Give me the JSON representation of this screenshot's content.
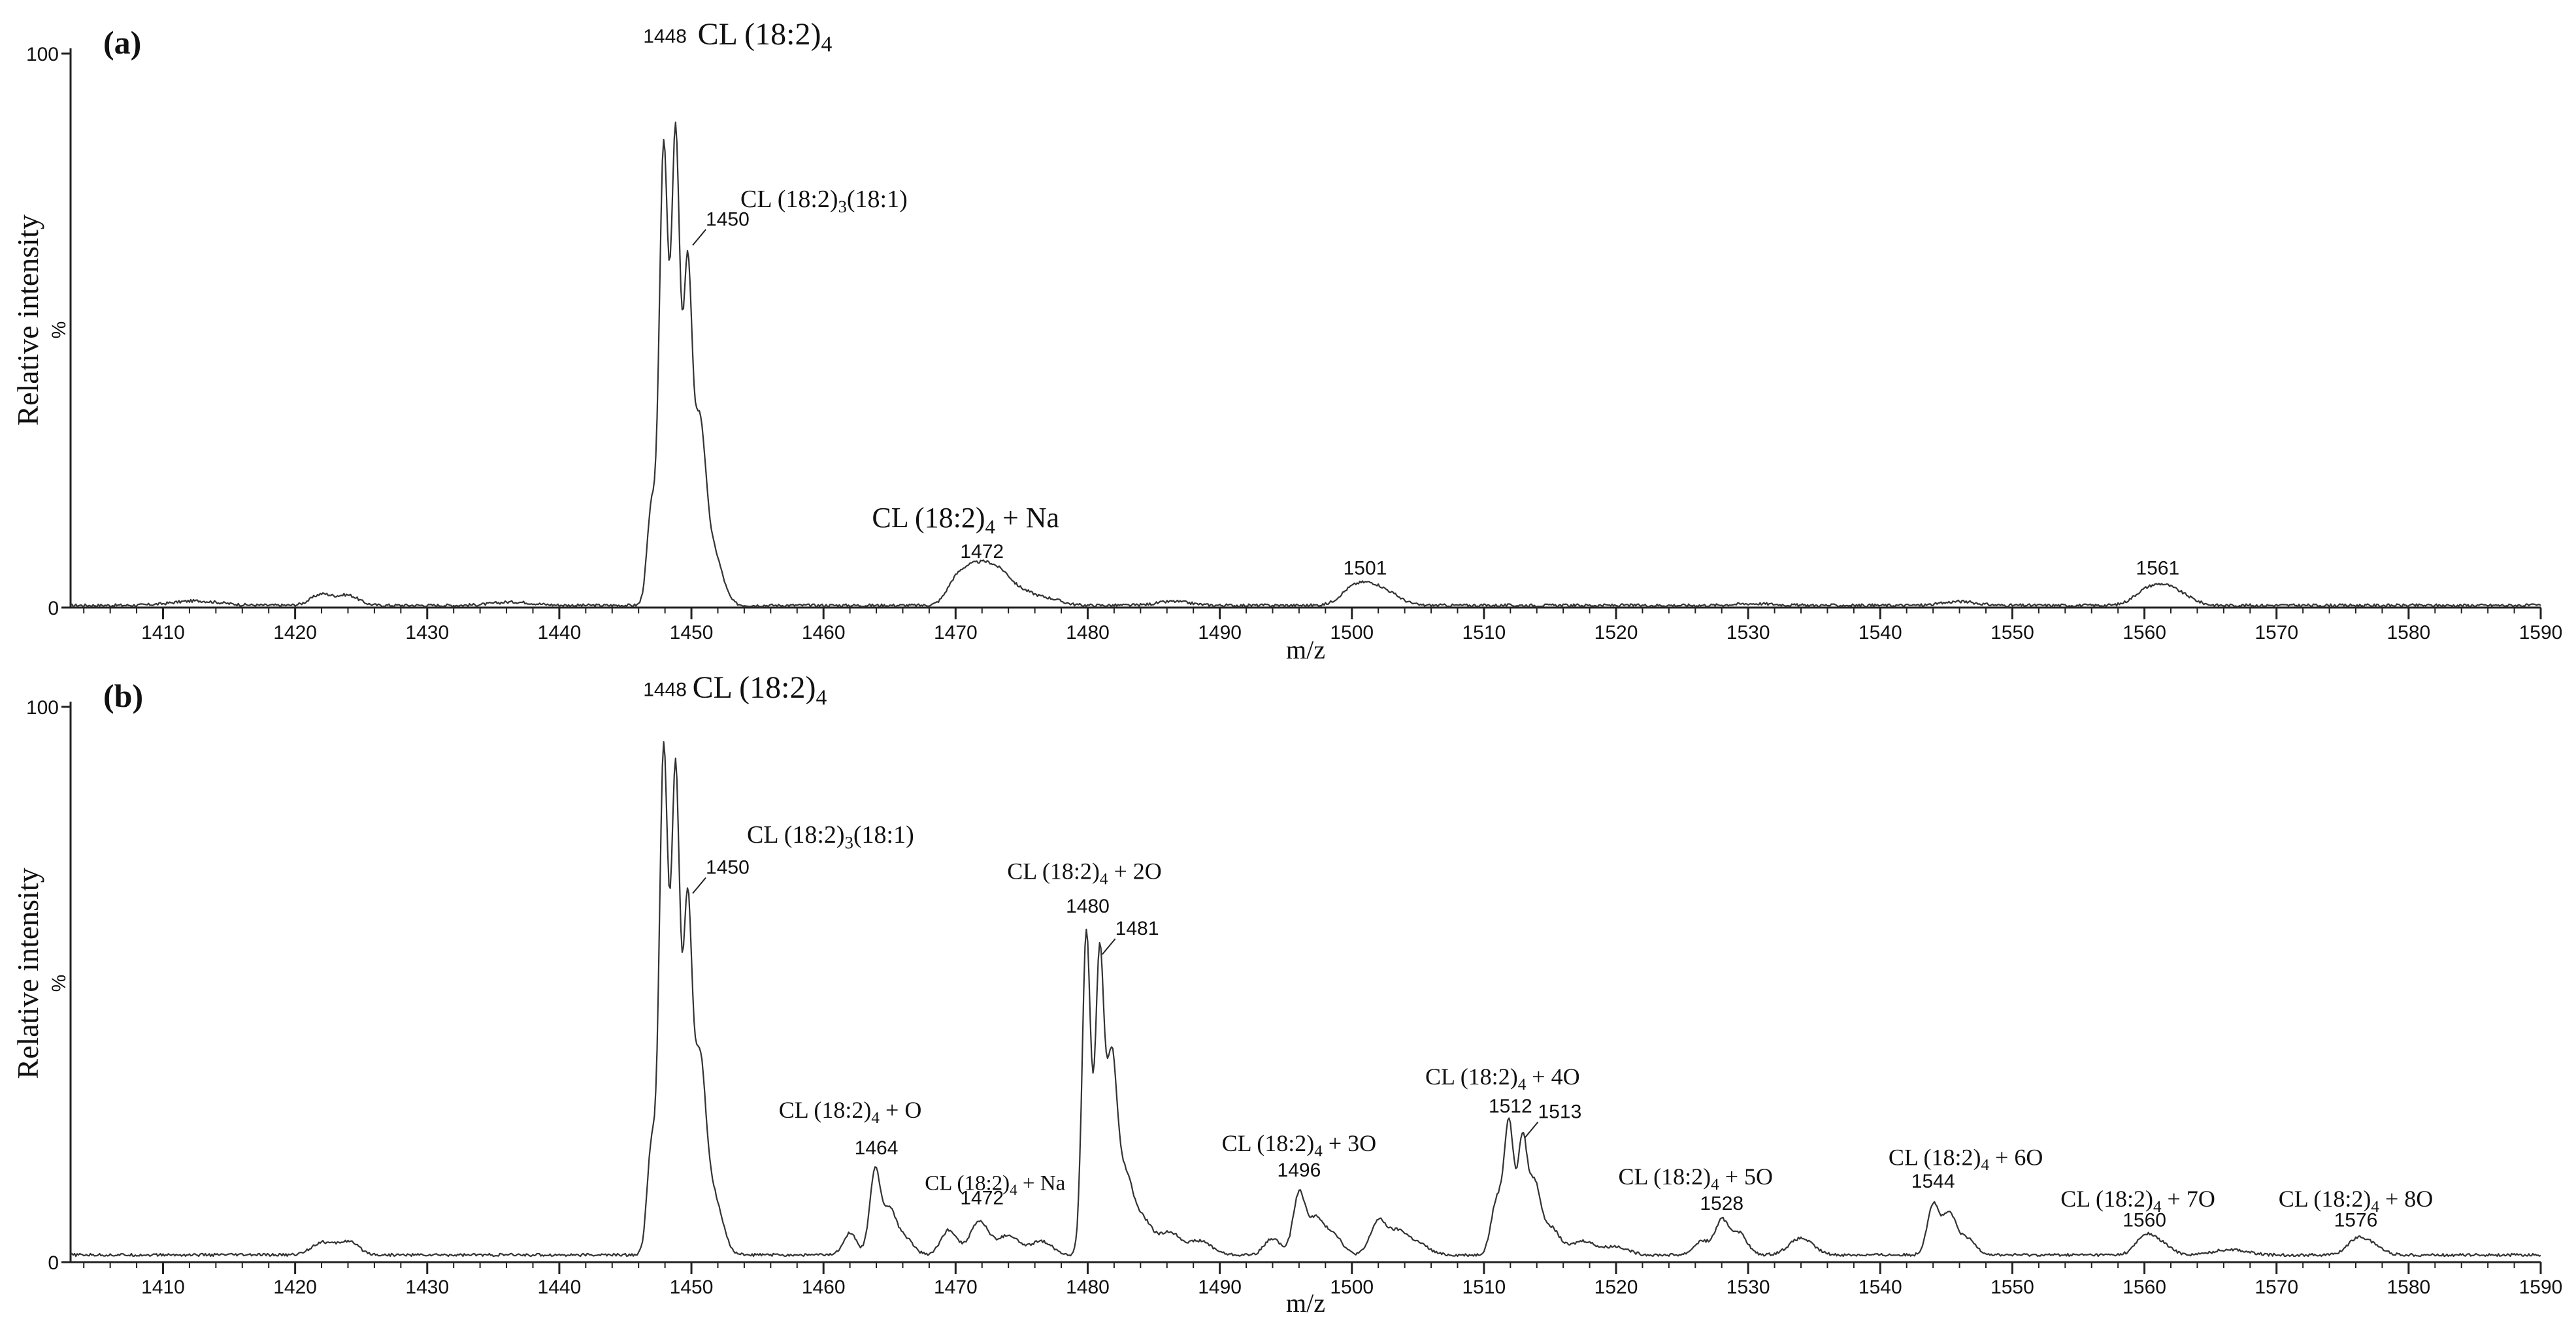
{
  "chart_data": [
    {
      "id": "a",
      "type": "line",
      "panel_label": "(a)",
      "xlabel": "m/z",
      "ylabel": "Relative intensity",
      "ylabel_unit": "%",
      "xlim": [
        1403,
        1590
      ],
      "ylim": [
        0,
        100
      ],
      "xticks": [
        1410,
        1420,
        1430,
        1440,
        1450,
        1460,
        1470,
        1480,
        1490,
        1500,
        1510,
        1520,
        1530,
        1540,
        1550,
        1560,
        1570,
        1580,
        1590
      ],
      "yticks": [
        0,
        100
      ],
      "baseline": 0.4,
      "peaks": [
        {
          "mz": 1412.5,
          "intensity": 0.8,
          "width": 1.8
        },
        {
          "mz": 1422.0,
          "intensity": 2.0,
          "width": 0.8
        },
        {
          "mz": 1424.0,
          "intensity": 1.8,
          "width": 0.8
        },
        {
          "mz": 1436.5,
          "intensity": 0.6,
          "width": 1.5
        },
        {
          "mz": 1447.0,
          "intensity": 18,
          "width": 0.35
        },
        {
          "mz": 1447.9,
          "intensity": 82,
          "width": 0.32
        },
        {
          "mz": 1448.8,
          "intensity": 84,
          "width": 0.32
        },
        {
          "mz": 1449.7,
          "intensity": 58,
          "width": 0.33
        },
        {
          "mz": 1450.6,
          "intensity": 30,
          "width": 0.45
        },
        {
          "mz": 1451.6,
          "intensity": 10,
          "width": 0.7
        },
        {
          "mz": 1470.0,
          "intensity": 4.2,
          "width": 0.7
        },
        {
          "mz": 1471.2,
          "intensity": 5.3,
          "width": 0.7
        },
        {
          "mz": 1472.4,
          "intensity": 5.6,
          "width": 0.7
        },
        {
          "mz": 1473.6,
          "intensity": 4.3,
          "width": 0.7
        },
        {
          "mz": 1475.0,
          "intensity": 2.4,
          "width": 0.9
        },
        {
          "mz": 1477.0,
          "intensity": 1.2,
          "width": 1.0
        },
        {
          "mz": 1486.5,
          "intensity": 0.7,
          "width": 1.2
        },
        {
          "mz": 1500.0,
          "intensity": 2.8,
          "width": 0.9
        },
        {
          "mz": 1501.5,
          "intensity": 3.0,
          "width": 0.9
        },
        {
          "mz": 1503.0,
          "intensity": 1.6,
          "width": 0.9
        },
        {
          "mz": 1530.5,
          "intensity": 0.3,
          "width": 1.5
        },
        {
          "mz": 1546.0,
          "intensity": 0.7,
          "width": 1.2
        },
        {
          "mz": 1560.0,
          "intensity": 2.3,
          "width": 0.9
        },
        {
          "mz": 1561.5,
          "intensity": 2.9,
          "width": 0.9
        },
        {
          "mz": 1563.0,
          "intensity": 1.4,
          "width": 0.9
        }
      ],
      "peak_labels": [
        {
          "text": "1448",
          "mz": 1448
        },
        {
          "text": "1450",
          "mz": 1450,
          "leader": true
        },
        {
          "text": "1472",
          "mz": 1472
        },
        {
          "text": "1501",
          "mz": 1501
        },
        {
          "text": "1561",
          "mz": 1561
        }
      ],
      "annotations": [
        {
          "pre": "CL (18:2)",
          "sub": "4",
          "post": "",
          "anchor": "1448 main"
        },
        {
          "pre": "CL (18:2)",
          "sub": "3",
          "post": "(18:1)",
          "anchor": "1450"
        },
        {
          "pre": "CL (18:2)",
          "sub": "4",
          "post": " + Na",
          "anchor": "1472 above"
        }
      ]
    },
    {
      "id": "b",
      "type": "line",
      "panel_label": "(b)",
      "xlabel": "m/z",
      "ylabel": "Relative intensity",
      "ylabel_unit": "%",
      "xlim": [
        1403,
        1590
      ],
      "ylim": [
        0,
        100
      ],
      "xticks": [
        1410,
        1420,
        1430,
        1440,
        1450,
        1460,
        1470,
        1480,
        1490,
        1500,
        1510,
        1520,
        1530,
        1540,
        1550,
        1560,
        1570,
        1580,
        1590
      ],
      "yticks": [
        0,
        100
      ],
      "baseline": 1.3,
      "peaks": [
        {
          "mz": 1422.0,
          "intensity": 2.2,
          "width": 0.8
        },
        {
          "mz": 1424.0,
          "intensity": 2.4,
          "width": 0.8
        },
        {
          "mz": 1447.0,
          "intensity": 20,
          "width": 0.35
        },
        {
          "mz": 1447.9,
          "intensity": 90,
          "width": 0.32
        },
        {
          "mz": 1448.8,
          "intensity": 86,
          "width": 0.32
        },
        {
          "mz": 1449.7,
          "intensity": 60,
          "width": 0.33
        },
        {
          "mz": 1450.6,
          "intensity": 32,
          "width": 0.45
        },
        {
          "mz": 1451.6,
          "intensity": 11,
          "width": 0.7
        },
        {
          "mz": 1462.0,
          "intensity": 4,
          "width": 0.5
        },
        {
          "mz": 1463.9,
          "intensity": 15,
          "width": 0.4
        },
        {
          "mz": 1465.0,
          "intensity": 8,
          "width": 0.5
        },
        {
          "mz": 1466.2,
          "intensity": 3,
          "width": 0.6
        },
        {
          "mz": 1469.5,
          "intensity": 4.5,
          "width": 0.6
        },
        {
          "mz": 1471.8,
          "intensity": 6,
          "width": 0.7
        },
        {
          "mz": 1474.0,
          "intensity": 3.5,
          "width": 0.8
        },
        {
          "mz": 1476.5,
          "intensity": 2.5,
          "width": 0.8
        },
        {
          "mz": 1479.9,
          "intensity": 58,
          "width": 0.32
        },
        {
          "mz": 1480.9,
          "intensity": 53,
          "width": 0.32
        },
        {
          "mz": 1481.8,
          "intensity": 33,
          "width": 0.4
        },
        {
          "mz": 1482.8,
          "intensity": 14,
          "width": 0.6
        },
        {
          "mz": 1484.2,
          "intensity": 6,
          "width": 0.7
        },
        {
          "mz": 1486.2,
          "intensity": 4,
          "width": 0.8
        },
        {
          "mz": 1488.5,
          "intensity": 2.5,
          "width": 0.9
        },
        {
          "mz": 1494.0,
          "intensity": 3,
          "width": 0.6
        },
        {
          "mz": 1496.0,
          "intensity": 11,
          "width": 0.45
        },
        {
          "mz": 1497.2,
          "intensity": 6,
          "width": 0.55
        },
        {
          "mz": 1498.5,
          "intensity": 4,
          "width": 0.7
        },
        {
          "mz": 1502.0,
          "intensity": 6,
          "width": 0.6
        },
        {
          "mz": 1503.5,
          "intensity": 4,
          "width": 0.7
        },
        {
          "mz": 1505.0,
          "intensity": 2,
          "width": 0.8
        },
        {
          "mz": 1511.0,
          "intensity": 10,
          "width": 0.45
        },
        {
          "mz": 1511.9,
          "intensity": 23,
          "width": 0.35
        },
        {
          "mz": 1512.9,
          "intensity": 20,
          "width": 0.35
        },
        {
          "mz": 1513.8,
          "intensity": 12,
          "width": 0.45
        },
        {
          "mz": 1515.0,
          "intensity": 5,
          "width": 0.7
        },
        {
          "mz": 1517.5,
          "intensity": 2.5,
          "width": 0.9
        },
        {
          "mz": 1520.0,
          "intensity": 1.5,
          "width": 0.9
        },
        {
          "mz": 1526.5,
          "intensity": 2.5,
          "width": 0.6
        },
        {
          "mz": 1528.0,
          "intensity": 6,
          "width": 0.5
        },
        {
          "mz": 1529.3,
          "intensity": 4,
          "width": 0.6
        },
        {
          "mz": 1534.0,
          "intensity": 3,
          "width": 0.9
        },
        {
          "mz": 1544.0,
          "intensity": 9,
          "width": 0.45
        },
        {
          "mz": 1545.2,
          "intensity": 7,
          "width": 0.5
        },
        {
          "mz": 1546.5,
          "intensity": 3,
          "width": 0.7
        },
        {
          "mz": 1560.0,
          "intensity": 3,
          "width": 0.7
        },
        {
          "mz": 1561.2,
          "intensity": 2,
          "width": 0.8
        },
        {
          "mz": 1566.5,
          "intensity": 1,
          "width": 1.2
        },
        {
          "mz": 1576.0,
          "intensity": 2.5,
          "width": 0.7
        },
        {
          "mz": 1577.2,
          "intensity": 1.8,
          "width": 0.8
        }
      ],
      "peak_labels": [
        {
          "text": "1448",
          "mz": 1448
        },
        {
          "text": "1450",
          "mz": 1450,
          "leader": true
        },
        {
          "text": "1464",
          "mz": 1464
        },
        {
          "text": "1472",
          "mz": 1472
        },
        {
          "text": "1480",
          "mz": 1480
        },
        {
          "text": "1481",
          "mz": 1481,
          "leader": true
        },
        {
          "text": "1496",
          "mz": 1496
        },
        {
          "text": "1512",
          "mz": 1512
        },
        {
          "text": "1513",
          "mz": 1513,
          "leader": true
        },
        {
          "text": "1528",
          "mz": 1528
        },
        {
          "text": "1544",
          "mz": 1544
        },
        {
          "text": "1560",
          "mz": 1560
        },
        {
          "text": "1576",
          "mz": 1576
        }
      ],
      "annotations": [
        {
          "pre": "CL (18:2)",
          "sub": "4",
          "post": "",
          "anchor": "1448 main"
        },
        {
          "pre": "CL (18:2)",
          "sub": "3",
          "post": "(18:1)",
          "anchor": "1450"
        },
        {
          "pre": "CL (18:2)",
          "sub": "4",
          "post": " + O",
          "anchor": "1464"
        },
        {
          "pre": "CL (18:2)",
          "sub": "4",
          "post": " + Na",
          "anchor": "1472 right"
        },
        {
          "pre": "CL (18:2)",
          "sub": "4",
          "post": " + 2O",
          "anchor": "1480"
        },
        {
          "pre": "CL (18:2)",
          "sub": "4",
          "post": " + 3O",
          "anchor": "1496"
        },
        {
          "pre": "CL (18:2)",
          "sub": "4",
          "post": " + 4O",
          "anchor": "1512"
        },
        {
          "pre": "CL (18:2)",
          "sub": "4",
          "post": " + 5O",
          "anchor": "1528"
        },
        {
          "pre": "CL (18:2)",
          "sub": "4",
          "post": " + 6O",
          "anchor": "1544"
        },
        {
          "pre": "CL (18:2)",
          "sub": "4",
          "post": " + 7O",
          "anchor": "1560"
        },
        {
          "pre": "CL (18:2)",
          "sub": "4",
          "post": " + 8O",
          "anchor": "1576"
        }
      ]
    }
  ]
}
